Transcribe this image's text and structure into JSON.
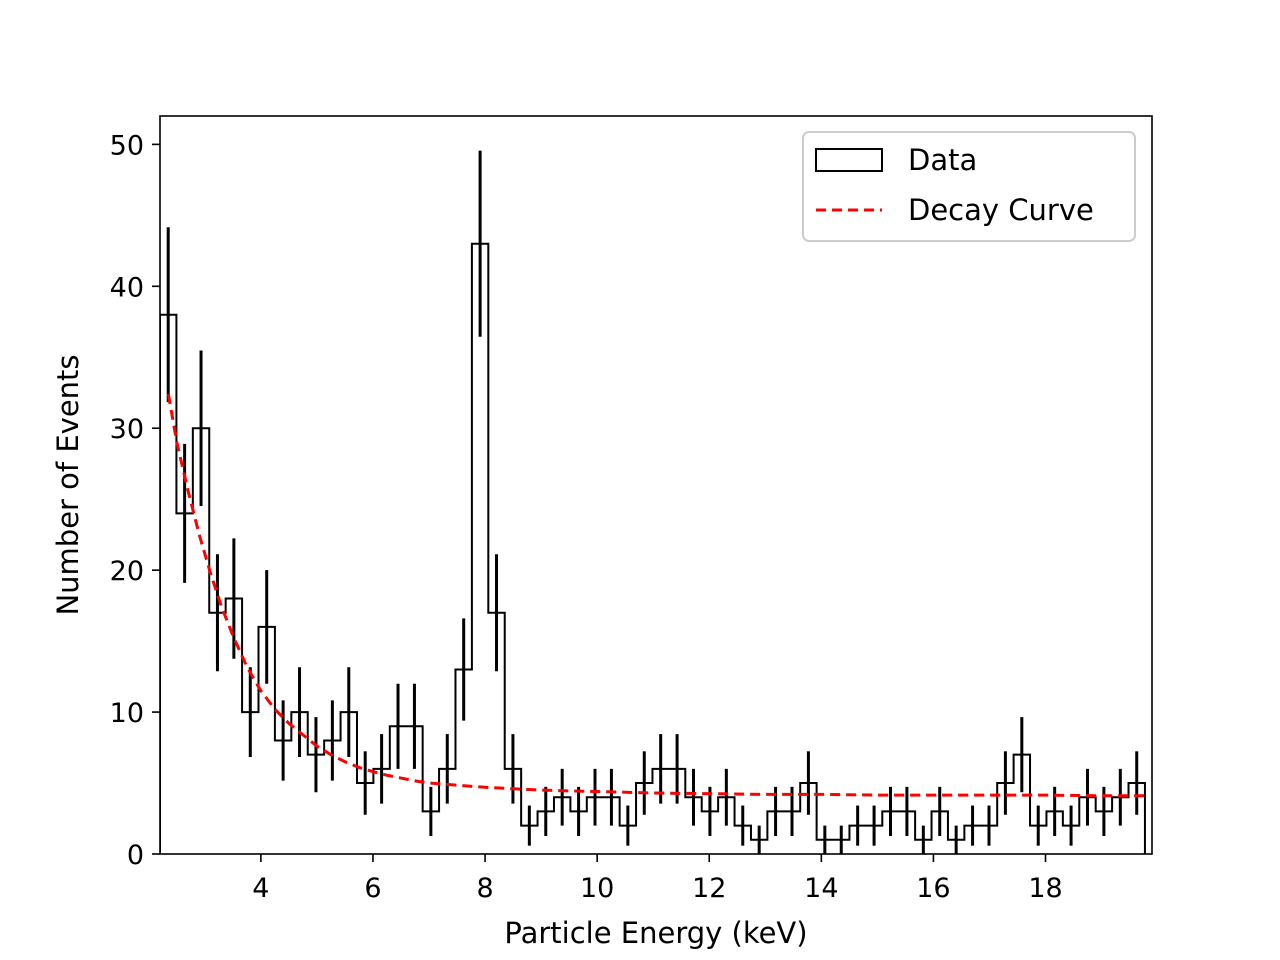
{
  "chart_data": {
    "type": "histogram",
    "xlabel": "Particle Energy (keV)",
    "ylabel": "Number of Events",
    "xlim": [
      2.2,
      19.9
    ],
    "ylim": [
      0,
      52
    ],
    "x_ticks": [
      4,
      6,
      8,
      10,
      12,
      14,
      16,
      18
    ],
    "y_ticks": [
      0,
      10,
      20,
      30,
      40,
      50
    ],
    "grid": false,
    "legend_position": "upper right",
    "bin_width": 0.2929,
    "bins": {
      "name": "Data",
      "color": "#000000",
      "x_start": 2.2,
      "counts": [
        38,
        24,
        30,
        17,
        18,
        10,
        16,
        8,
        10,
        7,
        8,
        10,
        5,
        6,
        9,
        9,
        3,
        6,
        13,
        43,
        17,
        6,
        2,
        3,
        4,
        3,
        4,
        4,
        2,
        5,
        6,
        6,
        4,
        3,
        4,
        2,
        1,
        3,
        3,
        5,
        1,
        1,
        2,
        2,
        3,
        3,
        1,
        3,
        1,
        2,
        2,
        5,
        7,
        2,
        3,
        2,
        4,
        3,
        4,
        5
      ]
    },
    "curve": {
      "name": "Decay Curve",
      "color": "#ff0000",
      "style": "dashed",
      "x": [
        2.35,
        2.5,
        2.7,
        2.9,
        3.1,
        3.3,
        3.5,
        3.75,
        4.0,
        4.25,
        4.5,
        4.75,
        5.0,
        5.25,
        5.5,
        5.75,
        6.0,
        6.25,
        6.5,
        6.75,
        7.0,
        7.5,
        8.0,
        8.5,
        9.0,
        9.5,
        10.0,
        11.0,
        12.0,
        13.0,
        14.0,
        15.0,
        16.0,
        17.0,
        18.0,
        19.0,
        19.8
      ],
      "y": [
        32.4,
        29.0,
        25.6,
        22.5,
        19.8,
        17.4,
        15.4,
        13.2,
        11.5,
        10.2,
        9.2,
        8.4,
        7.6,
        7.0,
        6.5,
        6.1,
        5.8,
        5.55,
        5.35,
        5.15,
        5.0,
        4.85,
        4.7,
        4.6,
        4.5,
        4.45,
        4.4,
        4.3,
        4.25,
        4.2,
        4.2,
        4.15,
        4.15,
        4.15,
        4.15,
        4.1,
        4.1
      ]
    }
  },
  "legend": {
    "data_label": "Data",
    "curve_label": "Decay Curve"
  }
}
